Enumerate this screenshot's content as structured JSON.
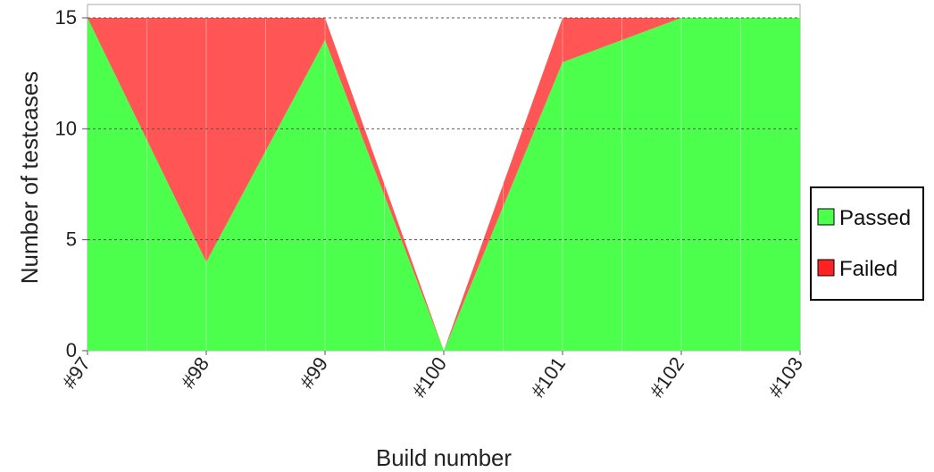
{
  "chart_data": {
    "type": "area",
    "stacked": true,
    "categories": [
      "#97",
      "#98",
      "#99",
      "#100",
      "#101",
      "#102",
      "#103"
    ],
    "series": [
      {
        "name": "Passed",
        "values": [
          15,
          4,
          14,
          0,
          13,
          15,
          15
        ],
        "color": "#4cff4c"
      },
      {
        "name": "Failed",
        "values": [
          0,
          11,
          1,
          0,
          2,
          0,
          0
        ],
        "color": "#ff5555"
      }
    ],
    "xlabel": "Build number",
    "ylabel": "Number of testcases",
    "ylim": [
      0,
      15
    ],
    "yticks": [
      0,
      5,
      10,
      15
    ],
    "grid": true,
    "legend_position": "right"
  }
}
